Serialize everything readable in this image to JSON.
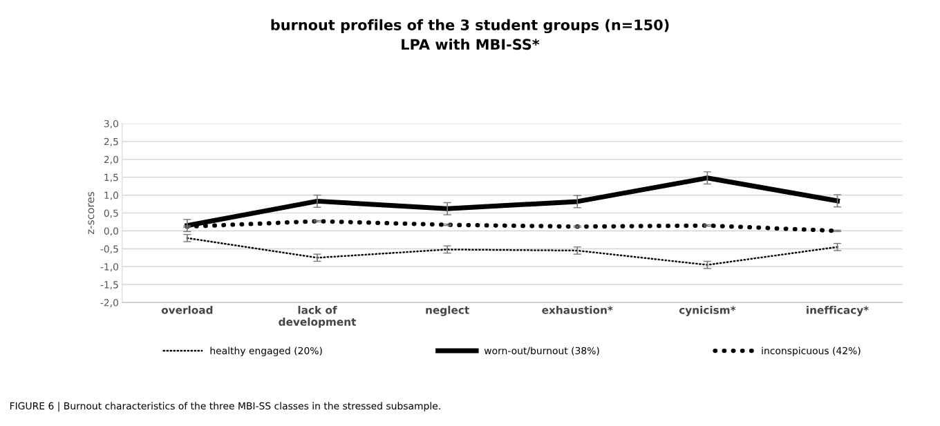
{
  "chart_data": {
    "type": "line",
    "title": "burnout profiles of the 3 student groups (n=150)\nLPA with MBI-SS*",
    "ylabel": "z-scores",
    "categories": [
      "overload",
      "lack of\ndevelopment",
      "neglect",
      "exhaustion*",
      "cynicism*",
      "inefficacy*"
    ],
    "series": [
      {
        "name": "healthy engaged (20%)",
        "color": "#000000",
        "line_style": "dotted",
        "values": [
          -0.2,
          -0.75,
          -0.52,
          -0.55,
          -0.95,
          -0.45
        ],
        "errors": [
          0.1,
          0.1,
          0.1,
          0.1,
          0.1,
          0.1
        ]
      },
      {
        "name": "worn-out/burnout (38%)",
        "color": "#000000",
        "line_style": "solid",
        "values": [
          0.15,
          0.83,
          0.62,
          0.82,
          1.48,
          0.84
        ],
        "errors": [
          0.17,
          0.17,
          0.17,
          0.17,
          0.17,
          0.17
        ]
      },
      {
        "name": "inconspicuous (42%)",
        "color": "#000000",
        "line_style": "dotted",
        "values": [
          0.12,
          0.27,
          0.17,
          0.12,
          0.15,
          0.0
        ],
        "errors": [
          0.02,
          0.02,
          0.02,
          0.02,
          0.02,
          0.02
        ]
      }
    ],
    "ylim": [
      -2.0,
      3.0
    ],
    "yticks": [
      {
        "value": -2.0,
        "label": "-2,0"
      },
      {
        "value": -1.5,
        "label": "-1,5"
      },
      {
        "value": -1.0,
        "label": "-1,0"
      },
      {
        "value": -0.5,
        "label": "-0,5"
      },
      {
        "value": 0.0,
        "label": "0,0"
      },
      {
        "value": 0.5,
        "label": "0,5"
      },
      {
        "value": 1.0,
        "label": "1,0"
      },
      {
        "value": 1.5,
        "label": "1,5"
      },
      {
        "value": 2.0,
        "label": "2,0"
      },
      {
        "value": 2.5,
        "label": "2,5"
      },
      {
        "value": 3.0,
        "label": "3,0"
      }
    ],
    "grid": "y",
    "legend": "bottom",
    "marker": "none",
    "annotations": [
      "FIGURE 6 | Burnout characteristics of the three MBI-SS classes in the stressed subsample."
    ]
  }
}
